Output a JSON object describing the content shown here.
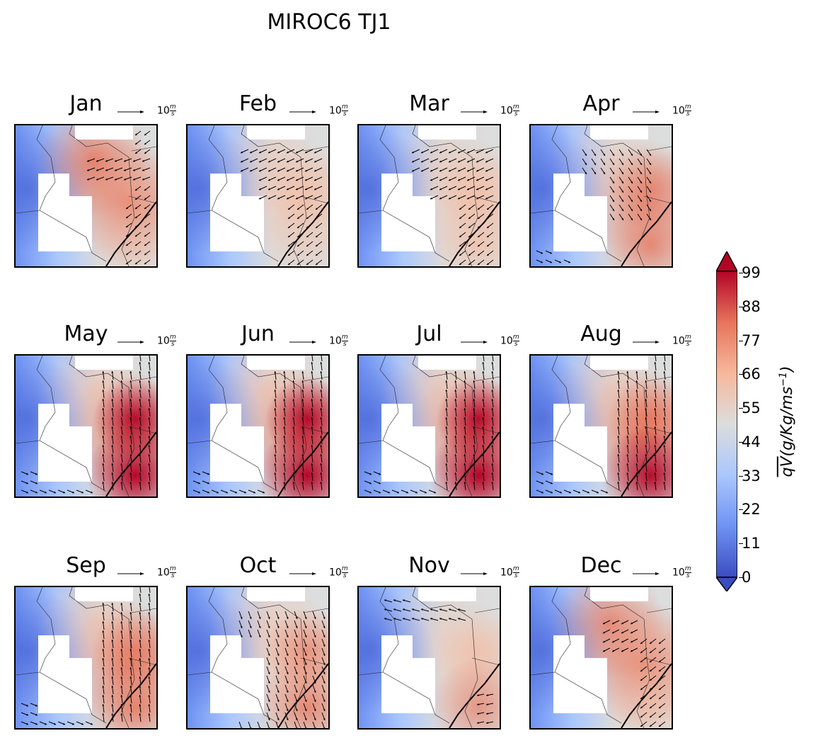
{
  "figure": {
    "title": "MIROC6 TJ1",
    "reference_vector": {
      "magnitude": "10",
      "unit_num": "m",
      "unit_den": "s"
    }
  },
  "panels": [
    {
      "month": "Jan",
      "hot": [
        0.8,
        0.85,
        0.25,
        0.4
      ],
      "vec": "easterly-coast"
    },
    {
      "month": "Feb",
      "hot": [
        0.6,
        0.35,
        0.45,
        0.25
      ],
      "vec": "easterly-north"
    },
    {
      "month": "Mar",
      "hot": [
        0.58,
        0.28,
        0.55,
        0.55
      ],
      "vec": "easterly-north"
    },
    {
      "month": "Apr",
      "hot": [
        0.62,
        0.28,
        0.65,
        0.75
      ],
      "vec": "northeast-band"
    },
    {
      "month": "May",
      "hot": [
        0.8,
        0.5,
        0.95,
        0.98
      ],
      "vec": "meridional"
    },
    {
      "month": "Jun",
      "hot": [
        0.82,
        0.55,
        0.95,
        0.98
      ],
      "vec": "meridional"
    },
    {
      "month": "Jul",
      "hot": [
        0.78,
        0.5,
        0.95,
        1.0
      ],
      "vec": "meridional"
    },
    {
      "month": "Aug",
      "hot": [
        0.82,
        0.48,
        0.85,
        0.95
      ],
      "vec": "meridional"
    },
    {
      "month": "Sep",
      "hot": [
        0.75,
        0.5,
        0.75,
        0.8
      ],
      "vec": "meridional"
    },
    {
      "month": "Oct",
      "hot": [
        0.58,
        0.4,
        0.65,
        0.78
      ],
      "vec": "mixed"
    },
    {
      "month": "Nov",
      "hot": [
        0.45,
        0.22,
        0.55,
        0.65
      ],
      "vec": "northwest"
    },
    {
      "month": "Dec",
      "hot": [
        0.8,
        0.75,
        0.3,
        0.55
      ],
      "vec": "southeast-coast"
    }
  ],
  "colorbar": {
    "ticks": [
      "0",
      "11",
      "22",
      "33",
      "44",
      "55",
      "66",
      "77",
      "88",
      "99"
    ],
    "min": 0,
    "max": 99,
    "label": "qV(g/Kg/ms⁻¹)",
    "colors": [
      "#3b4cc0",
      "#6f92f3",
      "#aac7fd",
      "#dcdddd",
      "#f7b89c",
      "#e7745b",
      "#b40426"
    ]
  }
}
